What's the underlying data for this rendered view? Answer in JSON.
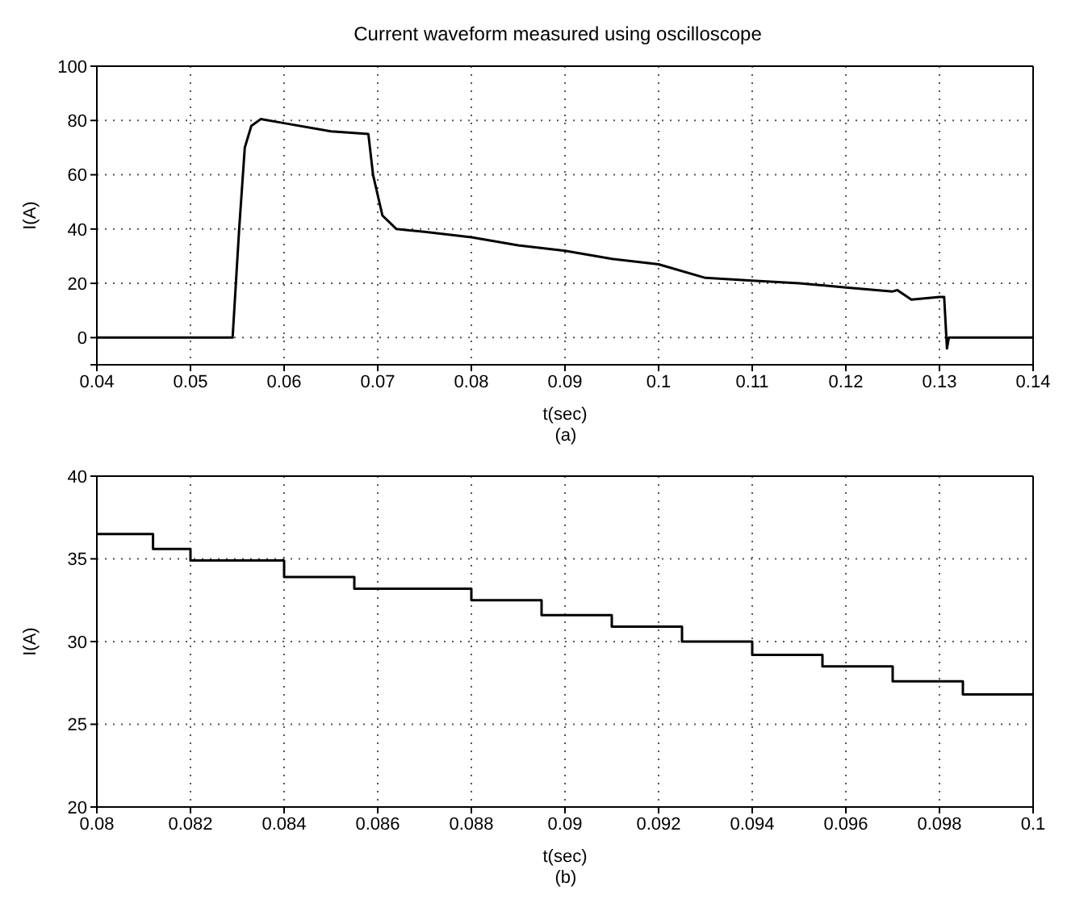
{
  "chart_data": [
    {
      "type": "line",
      "title": "Current waveform measured using oscilloscope",
      "xlabel": "t(sec)",
      "ylabel": "I(A)",
      "annotations": [
        "(a)"
      ],
      "grid": true,
      "marker": "none",
      "line_style": "solid",
      "xlim": [
        0.04,
        0.14
      ],
      "xticks": [
        0.04,
        0.05,
        0.06,
        0.07,
        0.08,
        0.09,
        0.1,
        0.11,
        0.12,
        0.13,
        0.14
      ],
      "ylim": [
        -10,
        100
      ],
      "yticks": [
        {
          "value": -10,
          "label": null
        },
        0,
        20,
        40,
        60,
        80,
        100
      ],
      "series": [
        {
          "color": "#000000",
          "x": [
            0.04,
            0.0545,
            0.0552,
            0.0558,
            0.0565,
            0.0575,
            0.06,
            0.065,
            0.069,
            0.0695,
            0.0705,
            0.072,
            0.075,
            0.08,
            0.085,
            0.09,
            0.095,
            0.1,
            0.105,
            0.11,
            0.115,
            0.12,
            0.125,
            0.1255,
            0.127,
            0.13,
            0.1305,
            0.1308,
            0.131,
            0.14
          ],
          "values": [
            0,
            0,
            40,
            70,
            78,
            80.5,
            79,
            76,
            75,
            60,
            45,
            40,
            39,
            37,
            34,
            32,
            29,
            27,
            22,
            21,
            20,
            18.5,
            17,
            17.5,
            14,
            15,
            15,
            -4,
            0,
            0
          ]
        }
      ]
    },
    {
      "type": "line",
      "xlabel": "t(sec)",
      "ylabel": "I(A)",
      "annotations": [
        "(b)"
      ],
      "grid": true,
      "marker": "none",
      "line_style": "solid",
      "xlim": [
        0.08,
        0.1
      ],
      "xticks": [
        0.08,
        0.082,
        0.084,
        0.086,
        0.088,
        0.09,
        0.092,
        0.094,
        0.096,
        0.098,
        0.1
      ],
      "ylim": [
        20,
        40
      ],
      "yticks": [
        20,
        25,
        30,
        35,
        40
      ],
      "series": [
        {
          "color": "#000000",
          "x": [
            0.08,
            0.0812,
            0.0812,
            0.082,
            0.082,
            0.084,
            0.084,
            0.0855,
            0.0855,
            0.088,
            0.088,
            0.0895,
            0.0895,
            0.091,
            0.091,
            0.0925,
            0.0925,
            0.094,
            0.094,
            0.0955,
            0.0955,
            0.097,
            0.097,
            0.0985,
            0.0985,
            0.1
          ],
          "values": [
            36.5,
            36.5,
            35.6,
            35.6,
            34.9,
            34.9,
            33.9,
            33.9,
            33.2,
            33.2,
            32.5,
            32.5,
            31.6,
            31.6,
            30.9,
            30.9,
            30,
            30,
            29.2,
            29.2,
            28.5,
            28.5,
            27.6,
            27.6,
            26.8,
            26.8
          ]
        }
      ]
    }
  ]
}
